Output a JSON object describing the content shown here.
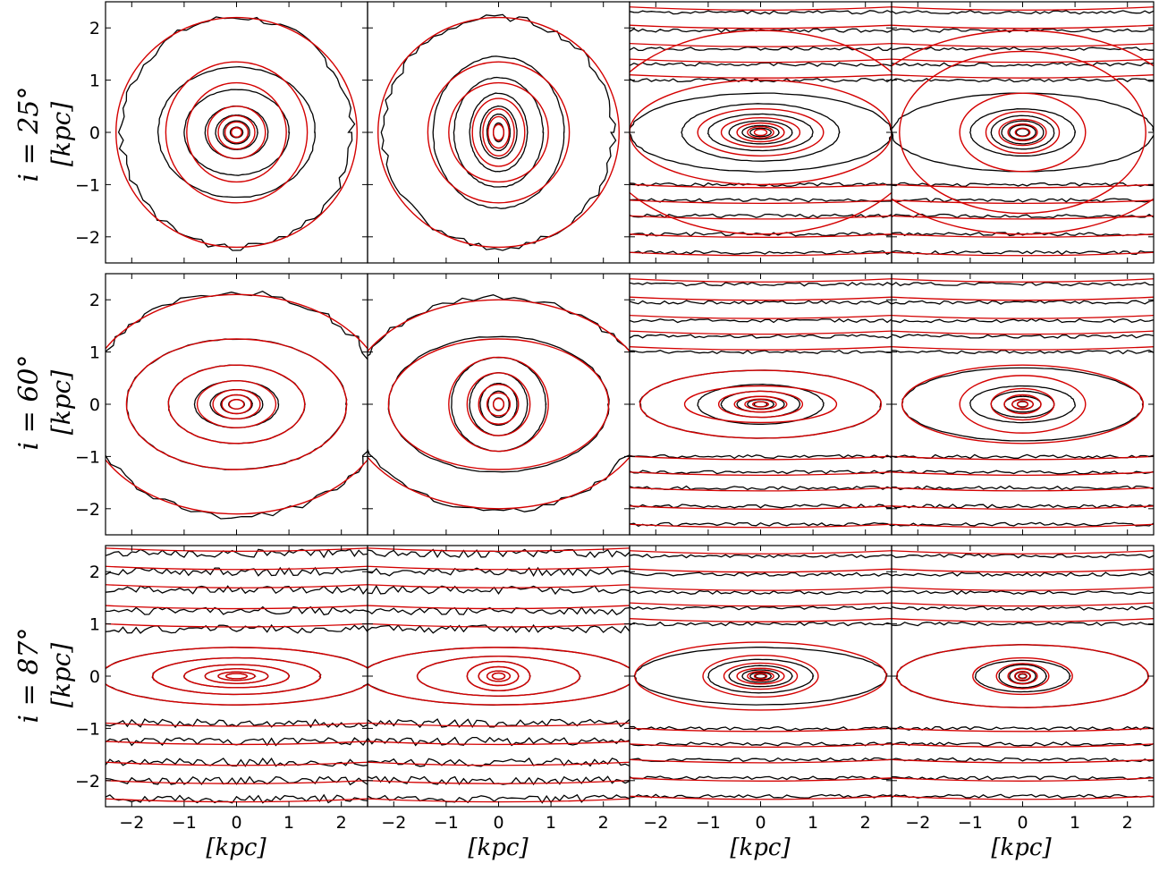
{
  "chart_data": {
    "type": "contour",
    "description_text": "",
    "grid": {
      "rows": 3,
      "cols": 4
    },
    "rows": [
      {
        "label": "i = 25°",
        "unit_label": "[kpc]"
      },
      {
        "label": "i = 60°",
        "unit_label": "[kpc]"
      },
      {
        "label": "i = 87°",
        "unit_label": "[kpc]"
      }
    ],
    "x_axis": {
      "label": "[kpc]",
      "lim": [
        -2.5,
        2.5
      ],
      "ticks": [
        -2,
        -1,
        0,
        1,
        2
      ],
      "tick_labels": [
        "−2",
        "−1",
        "0",
        "1",
        "2"
      ]
    },
    "y_axis": {
      "label": "[kpc]",
      "lim": [
        -2.5,
        2.5
      ],
      "ticks": [
        -2,
        -1,
        0,
        1,
        2
      ],
      "tick_labels": [
        "−2",
        "−1",
        "0",
        "1",
        "2"
      ]
    },
    "series": [
      {
        "name": "",
        "color": "#000000"
      },
      {
        "name": "",
        "color": "#d40000"
      }
    ],
    "panels": [
      {
        "row": 0,
        "col": 0,
        "kind": "ring",
        "data_contours": [
          [
            2.2,
            2.2
          ],
          [
            1.5,
            1.25
          ],
          [
            1.0,
            0.82
          ],
          [
            0.6,
            0.5
          ],
          [
            0.4,
            0.33
          ],
          [
            0.25,
            0.22
          ],
          [
            0.12,
            0.1
          ]
        ],
        "model_contours": [
          [
            2.3,
            2.2
          ],
          [
            1.35,
            1.35
          ],
          [
            0.95,
            0.95
          ],
          [
            0.55,
            0.5
          ],
          [
            0.35,
            0.32
          ],
          [
            0.22,
            0.2
          ],
          [
            0.1,
            0.09
          ]
        ]
      },
      {
        "row": 0,
        "col": 1,
        "kind": "ring",
        "data_contours": [
          [
            2.2,
            2.2
          ],
          [
            1.25,
            1.45
          ],
          [
            0.85,
            1.05
          ],
          [
            0.55,
            0.75
          ],
          [
            0.35,
            0.5
          ],
          [
            0.22,
            0.35
          ],
          [
            0.1,
            0.18
          ]
        ],
        "model_contours": [
          [
            2.3,
            2.2
          ],
          [
            1.35,
            1.35
          ],
          [
            0.95,
            0.95
          ],
          [
            0.5,
            0.65
          ],
          [
            0.3,
            0.45
          ],
          [
            0.2,
            0.3
          ],
          [
            0.1,
            0.15
          ]
        ]
      },
      {
        "row": 0,
        "col": 2,
        "kind": "strip",
        "data_lines": [
          2.3,
          1.95,
          1.6,
          1.3,
          1.0,
          -1.0,
          -1.3,
          -1.6,
          -1.95,
          -2.3
        ],
        "data_ellipses": [
          [
            2.5,
            0.75
          ],
          [
            1.5,
            0.55
          ],
          [
            1.0,
            0.35
          ],
          [
            0.6,
            0.22
          ],
          [
            0.35,
            0.13
          ],
          [
            0.2,
            0.08
          ]
        ],
        "model_ellipses": [
          [
            3.1,
            1.95
          ],
          [
            2.5,
            1.0
          ],
          [
            1.2,
            0.45
          ],
          [
            0.75,
            0.28
          ],
          [
            0.45,
            0.18
          ],
          [
            0.25,
            0.11
          ],
          [
            0.12,
            0.06
          ]
        ]
      },
      {
        "row": 0,
        "col": 3,
        "kind": "strip",
        "data_lines": [
          2.3,
          1.95,
          1.6,
          1.3,
          1.0,
          -1.0,
          -1.3,
          -1.6,
          -1.95,
          -2.3
        ],
        "data_ellipses": [
          [
            2.5,
            0.75
          ],
          [
            1.0,
            0.45
          ],
          [
            0.6,
            0.32
          ],
          [
            0.4,
            0.22
          ],
          [
            0.25,
            0.14
          ],
          [
            0.12,
            0.07
          ]
        ],
        "model_ellipses": [
          [
            3.3,
            1.95
          ],
          [
            2.35,
            1.55
          ],
          [
            1.2,
            0.75
          ],
          [
            0.7,
            0.4
          ],
          [
            0.45,
            0.25
          ],
          [
            0.28,
            0.16
          ],
          [
            0.14,
            0.08
          ]
        ]
      },
      {
        "row": 1,
        "col": 0,
        "kind": "ring",
        "data_contours": [
          [
            2.8,
            2.15
          ],
          [
            2.1,
            1.25
          ],
          [
            1.3,
            0.75
          ],
          [
            0.8,
            0.45
          ],
          [
            0.5,
            0.28
          ],
          [
            0.3,
            0.18
          ],
          [
            0.15,
            0.09
          ]
        ],
        "model_contours": [
          [
            2.9,
            2.1
          ],
          [
            2.1,
            1.25
          ],
          [
            1.3,
            0.75
          ],
          [
            0.75,
            0.45
          ],
          [
            0.45,
            0.28
          ],
          [
            0.28,
            0.18
          ],
          [
            0.14,
            0.09
          ]
        ]
      },
      {
        "row": 1,
        "col": 1,
        "kind": "ring",
        "data_contours": [
          [
            2.8,
            2.05
          ],
          [
            2.1,
            1.3
          ],
          [
            0.9,
            0.9
          ],
          [
            0.55,
            0.6
          ],
          [
            0.35,
            0.4
          ],
          [
            0.2,
            0.25
          ],
          [
            0.1,
            0.12
          ]
        ],
        "model_contours": [
          [
            2.9,
            2.0
          ],
          [
            2.1,
            1.25
          ],
          [
            0.95,
            0.9
          ],
          [
            0.6,
            0.6
          ],
          [
            0.38,
            0.38
          ],
          [
            0.22,
            0.22
          ],
          [
            0.1,
            0.11
          ]
        ]
      },
      {
        "row": 1,
        "col": 2,
        "kind": "strip",
        "data_lines": [
          2.3,
          1.95,
          1.6,
          1.3,
          1.0,
          -1.0,
          -1.3,
          -1.6,
          -1.95,
          -2.3
        ],
        "data_ellipses": [
          [
            2.3,
            0.65
          ],
          [
            1.2,
            0.38
          ],
          [
            0.75,
            0.25
          ],
          [
            0.45,
            0.15
          ],
          [
            0.25,
            0.09
          ],
          [
            0.12,
            0.05
          ]
        ],
        "model_ellipses": [
          [
            2.3,
            0.65
          ],
          [
            1.45,
            0.35
          ],
          [
            0.8,
            0.25
          ],
          [
            0.5,
            0.15
          ],
          [
            0.3,
            0.1
          ],
          [
            0.15,
            0.05
          ]
        ]
      },
      {
        "row": 1,
        "col": 3,
        "kind": "strip",
        "data_lines": [
          2.3,
          1.95,
          1.6,
          1.3,
          1.0,
          -1.0,
          -1.3,
          -1.6,
          -1.95,
          -2.3
        ],
        "data_ellipses": [
          [
            2.3,
            0.7
          ],
          [
            1.0,
            0.35
          ],
          [
            0.6,
            0.25
          ],
          [
            0.35,
            0.15
          ],
          [
            0.2,
            0.09
          ],
          [
            0.1,
            0.05
          ]
        ],
        "model_ellipses": [
          [
            2.3,
            0.75
          ],
          [
            1.2,
            0.55
          ],
          [
            0.6,
            0.3
          ],
          [
            0.35,
            0.18
          ],
          [
            0.2,
            0.1
          ],
          [
            0.1,
            0.06
          ]
        ]
      },
      {
        "row": 2,
        "col": 0,
        "kind": "edge",
        "data_lines": [
          2.35,
          2.0,
          1.65,
          1.25,
          0.9,
          -0.9,
          -1.25,
          -1.65,
          -2.0,
          -2.35
        ],
        "data_ellipses": [
          [
            2.6,
            0.55
          ],
          [
            1.6,
            0.35
          ],
          [
            1.0,
            0.22
          ],
          [
            0.6,
            0.14
          ],
          [
            0.35,
            0.08
          ],
          [
            0.2,
            0.05
          ]
        ],
        "model_ellipses": [
          [
            2.6,
            0.55
          ],
          [
            1.6,
            0.35
          ],
          [
            1.0,
            0.22
          ],
          [
            0.6,
            0.14
          ],
          [
            0.35,
            0.08
          ],
          [
            0.2,
            0.05
          ]
        ]
      },
      {
        "row": 2,
        "col": 1,
        "kind": "edge",
        "data_lines": [
          2.35,
          2.0,
          1.65,
          1.25,
          0.9,
          -0.9,
          -1.25,
          -1.65,
          -2.0,
          -2.35
        ],
        "data_ellipses": [
          [
            2.6,
            0.55
          ],
          [
            1.55,
            0.38
          ],
          [
            0.6,
            0.28
          ],
          [
            0.38,
            0.18
          ],
          [
            0.22,
            0.1
          ],
          [
            0.12,
            0.06
          ]
        ],
        "model_ellipses": [
          [
            2.6,
            0.55
          ],
          [
            1.55,
            0.38
          ],
          [
            0.6,
            0.28
          ],
          [
            0.38,
            0.18
          ],
          [
            0.22,
            0.1
          ],
          [
            0.12,
            0.06
          ]
        ]
      },
      {
        "row": 2,
        "col": 2,
        "kind": "strip",
        "data_lines": [
          2.3,
          1.95,
          1.6,
          1.3,
          1.0,
          -1.0,
          -1.3,
          -1.6,
          -1.95,
          -2.3
        ],
        "data_ellipses": [
          [
            2.4,
            0.55
          ],
          [
            1.0,
            0.32
          ],
          [
            0.6,
            0.2
          ],
          [
            0.35,
            0.12
          ],
          [
            0.2,
            0.07
          ],
          [
            0.1,
            0.04
          ]
        ],
        "model_ellipses": [
          [
            2.4,
            0.65
          ],
          [
            1.1,
            0.4
          ],
          [
            0.7,
            0.25
          ],
          [
            0.45,
            0.15
          ],
          [
            0.25,
            0.09
          ],
          [
            0.12,
            0.05
          ]
        ]
      },
      {
        "row": 2,
        "col": 3,
        "kind": "strip",
        "data_lines": [
          2.3,
          1.95,
          1.6,
          1.3,
          1.0,
          -1.0,
          -1.3,
          -1.6,
          -1.95,
          -2.3
        ],
        "data_ellipses": [
          [
            2.4,
            0.6
          ],
          [
            0.9,
            0.3
          ],
          [
            0.45,
            0.22
          ],
          [
            0.25,
            0.14
          ],
          [
            0.14,
            0.08
          ],
          [
            0.07,
            0.04
          ]
        ],
        "model_ellipses": [
          [
            2.4,
            0.6
          ],
          [
            0.95,
            0.35
          ],
          [
            0.5,
            0.24
          ],
          [
            0.28,
            0.15
          ],
          [
            0.15,
            0.09
          ],
          [
            0.08,
            0.05
          ]
        ]
      }
    ]
  }
}
